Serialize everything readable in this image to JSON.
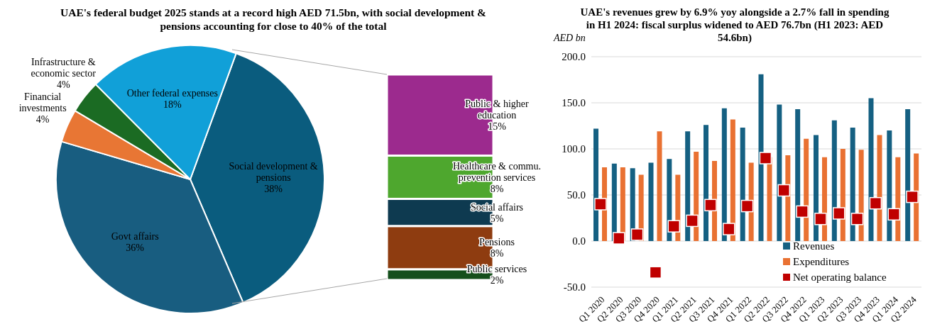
{
  "chart_data": [
    {
      "type": "pie",
      "title": "UAE's federal budget 2025 stands at a record high AED 71.5bn, with social development & pensions accounting for close to 40% of the total",
      "categories": [
        "Social development & pensions",
        "Govt affairs",
        "Financial investments",
        "Infrastructure & economic sector",
        "Other federal expenses"
      ],
      "values": [
        38,
        36,
        4,
        4,
        18
      ],
      "value_labels": [
        "38%",
        "36%",
        "4%",
        "4%",
        "18%"
      ],
      "colors": [
        "#0a5c7e",
        "#185d80",
        "#e87634",
        "#1b6b23",
        "#11a0d8"
      ]
    },
    {
      "type": "bar",
      "stacked": true,
      "categories": [
        null
      ],
      "series": [
        {
          "name": "Public services",
          "color": "#154f1c",
          "values": [
            2
          ],
          "value_labels": [
            "2%"
          ]
        },
        {
          "name": "Pensions",
          "color": "#8e3c10",
          "values": [
            8
          ],
          "value_labels": [
            "8%"
          ]
        },
        {
          "name": "Social affairs",
          "color": "#0e3a50",
          "values": [
            5
          ],
          "value_labels": [
            "5%"
          ]
        },
        {
          "name": "Healthcare & commu. prevention services",
          "color": "#4ea72e",
          "values": [
            8
          ],
          "value_labels": [
            "8%"
          ]
        },
        {
          "name": "Public & higher education",
          "color": "#9c2a8e",
          "values": [
            15
          ],
          "value_labels": [
            "15%"
          ]
        }
      ]
    },
    {
      "type": "bar",
      "title": "UAE's revenues grew by 6.9% yoy alongside a 2.7% fall in spending in H1 2024: fiscal surplus widened to AED 76.7bn (H1 2023: AED 54.6bn)",
      "ylabel": "AED bn",
      "categories": [
        "Q1 2020",
        "Q2 2020",
        "Q3 2020",
        "Q4 2020",
        "Q1 2021",
        "Q2 2021",
        "Q3 2021",
        "Q4 2021",
        "Q1 2022",
        "Q2 2022",
        "Q3 2022",
        "Q4 2022",
        "Q1 2023",
        "Q2 2023",
        "Q3 2023",
        "Q4 2023",
        "Q1 2024",
        "Q2 2024"
      ],
      "series": [
        {
          "name": "Revenues",
          "color": "#156082",
          "values": [
            122,
            84,
            79,
            85,
            89,
            119,
            126,
            144,
            123,
            181,
            148,
            143,
            115,
            131,
            123,
            155,
            120,
            143
          ]
        },
        {
          "name": "Expenditures",
          "color": "#e97132",
          "values": [
            80,
            80,
            72,
            119,
            72,
            97,
            87,
            132,
            85,
            91,
            93,
            111,
            91,
            100,
            99,
            115,
            91,
            95
          ]
        },
        {
          "name": "Net operating balance",
          "type": "scatter",
          "marker": "square",
          "color": "#c00000",
          "values": [
            40,
            3,
            7,
            -34,
            16,
            22,
            39,
            13,
            38,
            90,
            55,
            32,
            24,
            30,
            24,
            41,
            29,
            48
          ]
        }
      ],
      "ylim": [
        -50,
        200
      ],
      "yticks": [
        {
          "value": -50,
          "label": "-50.0"
        },
        {
          "value": 0,
          "label": "0.0"
        },
        {
          "value": 50,
          "label": "50.0"
        },
        {
          "value": 100,
          "label": "100.0"
        },
        {
          "value": 150,
          "label": "150.0"
        },
        {
          "value": 200,
          "label": "200.0"
        }
      ],
      "grid": "y",
      "legend": "bottom"
    }
  ]
}
